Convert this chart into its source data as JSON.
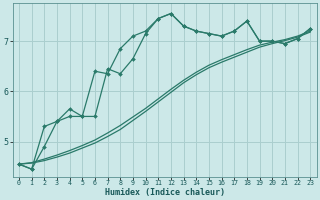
{
  "xlabel": "Humidex (Indice chaleur)",
  "bg_color": "#cce8e8",
  "grid_color": "#aacece",
  "line_color": "#2a7a6a",
  "xlim": [
    -0.5,
    23.5
  ],
  "ylim": [
    4.3,
    7.75
  ],
  "yticks": [
    5,
    6,
    7
  ],
  "xticks": [
    0,
    1,
    2,
    3,
    4,
    5,
    6,
    7,
    8,
    9,
    10,
    11,
    12,
    13,
    14,
    15,
    16,
    17,
    18,
    19,
    20,
    21,
    22,
    23
  ],
  "series_with_markers": [
    [
      4.55,
      4.45,
      4.9,
      5.4,
      5.65,
      5.5,
      5.5,
      6.45,
      6.35,
      6.65,
      7.15,
      7.45,
      7.55,
      7.3,
      7.2,
      7.15,
      7.1,
      7.2,
      7.4,
      7.0,
      7.0,
      6.95,
      7.05,
      7.25
    ],
    [
      4.55,
      4.45,
      5.3,
      5.4,
      5.5,
      5.5,
      6.4,
      6.35,
      6.85,
      7.1,
      7.2,
      7.45,
      7.55,
      7.3,
      7.2,
      7.15,
      7.1,
      7.2,
      7.4,
      7.0,
      7.0,
      6.95,
      7.05,
      7.25
    ]
  ],
  "series_lines": [
    [
      4.55,
      4.58,
      4.65,
      4.73,
      4.82,
      4.92,
      5.03,
      5.17,
      5.32,
      5.49,
      5.66,
      5.85,
      6.04,
      6.22,
      6.38,
      6.52,
      6.63,
      6.73,
      6.83,
      6.92,
      6.98,
      7.03,
      7.1,
      7.2
    ],
    [
      4.55,
      4.57,
      4.62,
      4.69,
      4.77,
      4.87,
      4.97,
      5.1,
      5.24,
      5.42,
      5.6,
      5.79,
      5.98,
      6.17,
      6.33,
      6.47,
      6.58,
      6.68,
      6.78,
      6.88,
      6.95,
      7.01,
      7.08,
      7.18
    ]
  ]
}
